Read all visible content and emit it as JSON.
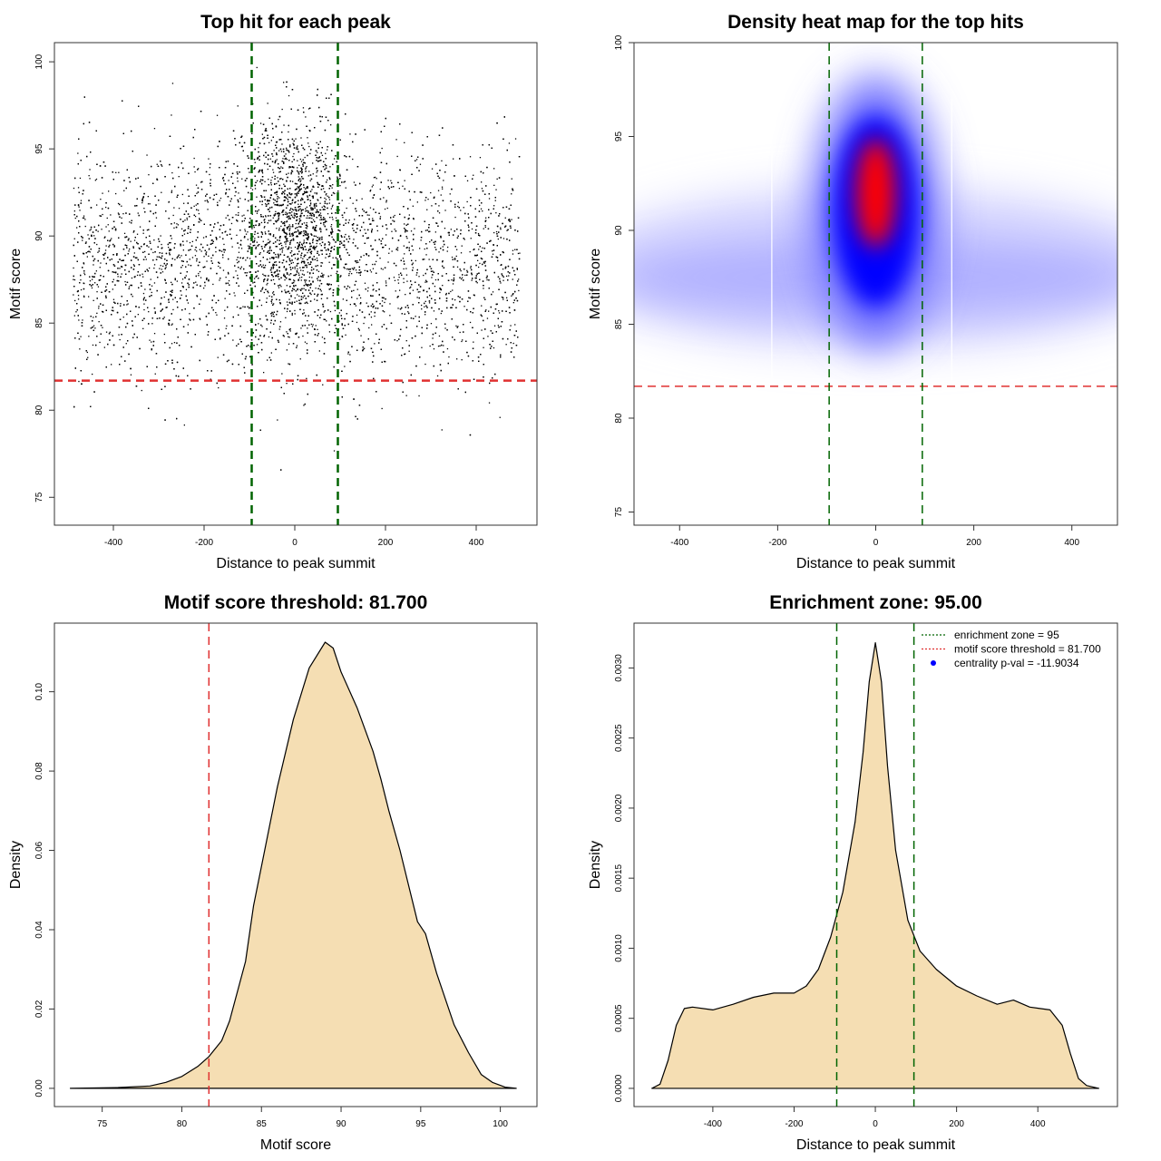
{
  "colors": {
    "threshold": "#e03030",
    "zone": "#006400",
    "fill": "#f5deb3",
    "point": "#000000",
    "heat_low": "#0000ff",
    "heat_high": "#ff0000"
  },
  "chart_data": [
    {
      "id": "p1",
      "type": "scatter",
      "title": "Top hit for each peak",
      "xlabel": "Distance to peak summit",
      "ylabel": "Motif score",
      "xlim": [
        -530,
        534
      ],
      "ylim": [
        73.4,
        101.1
      ],
      "xticks": [
        -400,
        -200,
        0,
        200,
        400
      ],
      "yticks": [
        75,
        80,
        85,
        90,
        95,
        100
      ],
      "hlines": [
        81.7
      ],
      "vlines": [
        -95,
        95
      ]
    },
    {
      "id": "p2",
      "type": "heatmap",
      "title": "Density heat map for the top hits",
      "xlabel": "Distance to peak summit",
      "ylabel": "Motif score",
      "xlim": [
        -493,
        493
      ],
      "ylim": [
        74.3,
        100
      ],
      "xticks": [
        -400,
        -200,
        0,
        200,
        400
      ],
      "yticks": [
        75,
        80,
        85,
        90,
        95,
        100
      ],
      "hlines": [
        81.7
      ],
      "vlines": [
        -95,
        95
      ],
      "peak": {
        "x": 0,
        "y": 92
      }
    },
    {
      "id": "p3",
      "type": "area",
      "title": "Motif score threshold: 81.700",
      "xlabel": "Motif score",
      "ylabel": "Density",
      "xlim": [
        72,
        102.3
      ],
      "ylim": [
        -0.0046,
        0.1173
      ],
      "xticks": [
        75,
        80,
        85,
        90,
        95,
        100
      ],
      "yticks": [
        0.0,
        0.02,
        0.04,
        0.06,
        0.08,
        0.1
      ],
      "ytick_labels": [
        "0.00",
        "0.02",
        "0.04",
        "0.06",
        "0.08",
        "0.10"
      ],
      "vlines_red": [
        81.7
      ],
      "x": [
        73,
        76,
        78,
        79,
        80,
        81,
        81.7,
        82.5,
        83,
        84,
        84.5,
        85,
        86,
        87,
        88,
        89,
        89.5,
        90,
        91,
        92,
        92.5,
        93,
        93.7,
        94.8,
        95.3,
        96,
        97.1,
        98,
        98.8,
        99.5,
        100.3,
        101
      ],
      "y": [
        0,
        0.0002,
        0.0006,
        0.0015,
        0.003,
        0.0055,
        0.008,
        0.012,
        0.017,
        0.032,
        0.046,
        0.056,
        0.076,
        0.093,
        0.106,
        0.1125,
        0.111,
        0.105,
        0.096,
        0.085,
        0.078,
        0.07,
        0.06,
        0.042,
        0.039,
        0.029,
        0.016,
        0.009,
        0.0035,
        0.0015,
        0.0003,
        0
      ]
    },
    {
      "id": "p4",
      "type": "area",
      "title": "Enrichment zone: 95.00",
      "xlabel": "Distance to peak summit",
      "ylabel": "Density",
      "xlim": [
        -594,
        596
      ],
      "ylim": [
        -0.00013,
        0.00332
      ],
      "xticks": [
        -400,
        -200,
        0,
        200,
        400
      ],
      "yticks": [
        0,
        0.0005,
        0.001,
        0.0015,
        0.002,
        0.0025,
        0.003
      ],
      "ytick_labels": [
        "0.0000",
        "0.0005",
        "0.0010",
        "0.0015",
        "0.0020",
        "0.0025",
        "0.0030"
      ],
      "vlines": [
        -95,
        95
      ],
      "x": [
        -550,
        -530,
        -510,
        -490,
        -470,
        -450,
        -400,
        -350,
        -300,
        -250,
        -200,
        -170,
        -140,
        -110,
        -80,
        -50,
        -30,
        -15,
        0,
        15,
        30,
        50,
        80,
        110,
        150,
        200,
        250,
        300,
        340,
        380,
        430,
        460,
        480,
        500,
        520,
        550
      ],
      "y": [
        0,
        3e-05,
        0.0002,
        0.00045,
        0.00057,
        0.00058,
        0.00056,
        0.0006,
        0.00065,
        0.00068,
        0.00068,
        0.00073,
        0.00085,
        0.00108,
        0.0014,
        0.0019,
        0.0024,
        0.0029,
        0.00318,
        0.0029,
        0.0023,
        0.0017,
        0.0012,
        0.00098,
        0.00085,
        0.00073,
        0.00066,
        0.0006,
        0.00063,
        0.00058,
        0.00056,
        0.00045,
        0.00025,
        7e-05,
        2e-05,
        0
      ],
      "legend": {
        "position": "top-right",
        "entries": [
          {
            "label": "enrichment zone = 95",
            "style": "dotted",
            "color": "#006400"
          },
          {
            "label": "motif score threshold = 81.700",
            "style": "dotted",
            "color": "#e03030"
          },
          {
            "label": "centrality p-val = -11.9034",
            "style": "point",
            "color": "#0000ff"
          }
        ]
      }
    }
  ]
}
